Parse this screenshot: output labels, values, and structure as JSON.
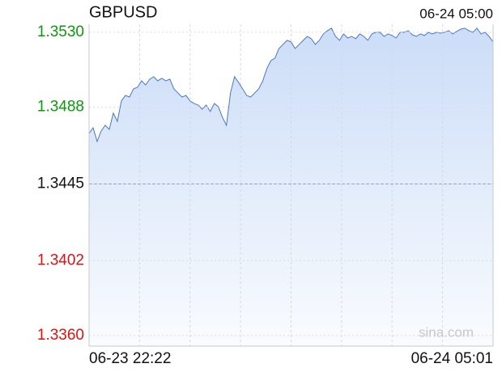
{
  "chart_data": {
    "type": "area-line",
    "title": "GBPUSD",
    "timestamp": "06-24 05:00",
    "watermark": "sina.com",
    "color": "#4a78c4",
    "fill_color": "#cfdff8",
    "reference_value": 1.3445,
    "ylim": [
      1.33541,
      1.35345
    ],
    "yticks": [
      {
        "value": 1.353,
        "label": "1.3530"
      },
      1.3488,
      1.3445,
      1.3402,
      {
        "value": 1.336,
        "label": "1.3360"
      }
    ],
    "ytick_colors": [
      "#0a9a0a",
      "#0a9a0a",
      "#111111",
      "#e01010",
      "#e01010"
    ],
    "grid": true,
    "categories": [
      "06-23 22:22",
      null,
      null,
      null,
      null,
      null,
      null,
      null,
      null,
      null,
      null,
      null,
      null,
      null,
      null,
      null,
      null,
      null,
      null,
      null,
      null,
      null,
      null,
      null,
      null,
      null,
      null,
      null,
      null,
      null,
      null,
      null,
      null,
      null,
      null,
      null,
      null,
      null,
      null,
      null,
      null,
      null,
      null,
      null,
      null,
      null,
      null,
      null,
      null,
      null,
      null,
      null,
      null,
      null,
      null,
      null,
      null,
      null,
      null,
      null,
      null,
      null,
      null,
      null,
      null,
      null,
      null,
      null,
      null,
      null,
      null,
      null,
      null,
      null,
      null,
      null,
      null,
      null,
      null,
      null,
      null,
      null,
      null,
      null,
      null,
      null,
      null,
      null,
      null,
      null,
      null,
      null,
      null,
      null,
      null,
      null,
      null,
      null,
      null,
      null,
      "06-24 05:01"
    ],
    "values": [
      1.34733,
      1.34765,
      1.34688,
      1.34747,
      1.34779,
      1.34756,
      1.34847,
      1.34801,
      1.34915,
      1.34946,
      1.34937,
      1.34983,
      1.34992,
      1.35028,
      1.35005,
      1.35037,
      1.35051,
      1.35028,
      1.35042,
      1.35028,
      1.35037,
      1.34983,
      1.3496,
      1.34937,
      1.34946,
      1.34915,
      1.34901,
      1.34892,
      1.34869,
      1.34892,
      1.34856,
      1.34901,
      1.34883,
      1.34824,
      1.34779,
      1.3496,
      1.35051,
      1.35019,
      1.34983,
      1.34946,
      1.34937,
      1.3496,
      1.34983,
      1.35028,
      1.35096,
      1.35141,
      1.35155,
      1.35209,
      1.35232,
      1.35255,
      1.35246,
      1.35209,
      1.35232,
      1.35255,
      1.35277,
      1.35264,
      1.35232,
      1.35255,
      1.35291,
      1.35309,
      1.35323,
      1.35277,
      1.35255,
      1.35291,
      1.35268,
      1.35277,
      1.35264,
      1.35291,
      1.35277,
      1.35255,
      1.35291,
      1.353,
      1.353,
      1.35277,
      1.35291,
      1.35282,
      1.35268,
      1.353,
      1.353,
      1.35309,
      1.35286,
      1.35277,
      1.35291,
      1.35282,
      1.353,
      1.35291,
      1.353,
      1.35295,
      1.353,
      1.35309,
      1.35291,
      1.35305,
      1.35318,
      1.35323,
      1.35309,
      1.353,
      1.35323,
      1.35291,
      1.353,
      1.35277,
      1.35246
    ]
  }
}
